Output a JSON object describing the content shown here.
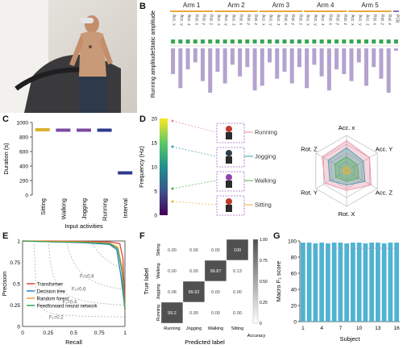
{
  "panels": {
    "a": "A",
    "b": "B",
    "c": "C",
    "d": "D",
    "e": "E",
    "f": "F",
    "g": "G"
  },
  "chart_data": [
    {
      "panel": "B",
      "type": "bar",
      "groups": [
        "Arm 1",
        "Arm 2",
        "Arm 3",
        "Arm 4",
        "Arm 5"
      ],
      "group_colors": [
        "#e8a93a",
        "#e8a93a",
        "#e8a93a",
        "#e8a93a",
        "#e8a93a"
      ],
      "categories": [
        "Acc. x",
        "Acc. y",
        "Acc. z",
        "Rot. x",
        "Rot. y",
        "Rot. z",
        "Acc. x",
        "Acc. y",
        "Acc. z",
        "Rot. x",
        "Rot. y",
        "Rot. z",
        "Acc. x",
        "Acc. y",
        "Acc. z",
        "Rot. x",
        "Rot. y",
        "Rot. z",
        "Acc. x",
        "Acc. y",
        "Acc. z",
        "Rot. x",
        "Rot. y",
        "Rot. z",
        "Acc. x",
        "Acc. y",
        "Acc. z",
        "Rot. x",
        "Rot. y",
        "Rot. z",
        "PCB"
      ],
      "series": [
        {
          "name": "",
          "values": [
            0.05,
            0.04,
            0.05,
            0.05,
            0.04,
            0.05,
            0.05,
            0.04,
            0.05,
            0.05,
            0.04,
            0.05,
            0.05,
            0.04,
            0.05,
            0.05,
            0.04,
            0.05,
            0.05,
            0.04,
            0.05,
            0.05,
            0.04,
            0.05,
            0.05,
            0.04,
            0.05,
            0.05,
            0.04,
            0.05,
            0.05
          ]
        },
        {
          "name": "",
          "values": [
            0.55,
            0.85,
            0.45,
            0.3,
            0.7,
            0.95,
            0.5,
            0.75,
            0.35,
            0.6,
            0.4,
            0.9,
            0.8,
            0.3,
            0.65,
            0.5,
            0.75,
            0.4,
            0.85,
            0.35,
            0.6,
            0.9,
            0.45,
            0.55,
            0.7,
            0.3,
            0.8,
            0.4,
            0.65,
            0.95,
            0.05
          ]
        }
      ],
      "ylabel_top": "Static amplitude",
      "ylabel_bottom": "Running amplitude",
      "colors": {
        "static": "#3aa655",
        "running": "#b3a3cf",
        "arm_line": "#e8a93a",
        "pcb_line": "#8a6fb5"
      }
    },
    {
      "panel": "C",
      "type": "scatter",
      "categories": [
        "Sitting",
        "Walking",
        "Jogging",
        "Running",
        "Interval"
      ],
      "values": [
        900,
        895,
        895,
        895,
        305
      ],
      "ylabel": "Duration (s)",
      "xlabel": "Input activities",
      "ylim": [
        0,
        1000
      ],
      "yticks": [
        0,
        200,
        400,
        600,
        800,
        1000
      ],
      "colors": [
        "#d9b22f",
        "#7b4aa0",
        "#7b4aa0",
        "#2c3a8c",
        "#2c3a8c"
      ]
    },
    {
      "panel": "D",
      "type": "heatmap",
      "colorbar_label": "Frequency (Hz)",
      "colorbar_ticks": [
        0,
        5,
        10,
        15,
        20
      ],
      "activities": [
        "Running",
        "Jogging",
        "Walking",
        "Sitting"
      ],
      "activity_colors": [
        "#e78aa0",
        "#3a9fa5",
        "#4caf50",
        "#f0b23c"
      ],
      "radar_axes": [
        "Acc. x",
        "Acc. Y",
        "Acc. Z",
        "Rot. X",
        "Rot. Y",
        "Rot. Z"
      ],
      "radar_series": [
        {
          "name": "Running",
          "values": [
            0.85,
            0.75,
            0.8,
            0.55,
            0.7,
            0.8
          ]
        },
        {
          "name": "Jogging",
          "values": [
            0.65,
            0.55,
            0.6,
            0.4,
            0.55,
            0.6
          ]
        },
        {
          "name": "Walking",
          "values": [
            0.4,
            0.35,
            0.4,
            0.3,
            0.35,
            0.38
          ]
        },
        {
          "name": "Sitting",
          "values": [
            0.12,
            0.1,
            0.12,
            0.1,
            0.1,
            0.12
          ]
        }
      ]
    },
    {
      "panel": "E",
      "type": "line",
      "xlabel": "Recall",
      "ylabel": "Precision",
      "xlim": [
        0,
        1
      ],
      "ylim": [
        0,
        1
      ],
      "xticks": [
        0,
        0.25,
        0.5,
        0.75,
        1
      ],
      "yticks": [
        0,
        0.25,
        0.5,
        0.75,
        1
      ],
      "xtick_labels": [
        "0",
        "0.25",
        "0.5",
        "0.75",
        "1"
      ],
      "ytick_labels": [
        "0",
        "0.25",
        "0.5",
        "0.75",
        "1"
      ],
      "series": [
        {
          "name": "Transformer",
          "color": "#e0443a",
          "points": [
            [
              0,
              1
            ],
            [
              0.3,
              1
            ],
            [
              0.6,
              0.995
            ],
            [
              0.85,
              0.99
            ],
            [
              0.95,
              0.97
            ],
            [
              0.98,
              0.8
            ],
            [
              1,
              0.2
            ]
          ]
        },
        {
          "name": "Decision tree",
          "color": "#2f7fc1",
          "points": [
            [
              0,
              1
            ],
            [
              0.3,
              0.99
            ],
            [
              0.6,
              0.98
            ],
            [
              0.85,
              0.96
            ],
            [
              0.92,
              0.9
            ],
            [
              0.96,
              0.6
            ],
            [
              1,
              0.2
            ]
          ]
        },
        {
          "name": "Random forest",
          "color": "#f39c2f",
          "points": [
            [
              0,
              1
            ],
            [
              0.3,
              0.995
            ],
            [
              0.6,
              0.99
            ],
            [
              0.85,
              0.975
            ],
            [
              0.93,
              0.93
            ],
            [
              0.97,
              0.7
            ],
            [
              1,
              0.2
            ]
          ]
        },
        {
          "name": "Feedforward neural network",
          "color": "#3aa655",
          "points": [
            [
              0,
              1
            ],
            [
              0.3,
              0.99
            ],
            [
              0.6,
              0.985
            ],
            [
              0.85,
              0.97
            ],
            [
              0.93,
              0.91
            ],
            [
              0.97,
              0.65
            ],
            [
              1,
              0.2
            ]
          ]
        }
      ],
      "iso_f1": [
        0.8,
        0.6,
        0.4,
        0.2
      ],
      "iso_labels": [
        "F₁=0.8",
        "F₁=0.6",
        "F₁=0.4",
        "F₁=0.2"
      ]
    },
    {
      "panel": "F",
      "type": "table",
      "xlabel": "Predicted label",
      "ylabel": "True label",
      "rows": [
        "Sitting",
        "Walking",
        "Jogging",
        "Running"
      ],
      "cols": [
        "Running",
        "Jogging",
        "Walking",
        "Sitting"
      ],
      "matrix": [
        [
          "0.00",
          "0.00",
          "0.00",
          "100"
        ],
        [
          "0.00",
          "0.00",
          "99.87",
          "0.13"
        ],
        [
          "0.08",
          "99.92",
          "0.00",
          "0.00"
        ],
        [
          "99.2",
          "0.00",
          "0.00",
          "0.00"
        ]
      ],
      "colorbar_ticks": [
        "0",
        "0.25",
        "0.50",
        "0.75",
        "1.00"
      ],
      "colorbar_label": "Accuracy"
    },
    {
      "panel": "G",
      "type": "bar",
      "xlabel": "Subject",
      "ylabel": "Macro F₁ score",
      "ylim": [
        0,
        100
      ],
      "yticks": [
        0,
        20,
        40,
        60,
        80,
        100
      ],
      "xtick_labels": [
        "1",
        "4",
        "7",
        "10",
        "13",
        "16"
      ],
      "categories": [
        "1",
        "2",
        "3",
        "4",
        "5",
        "6",
        "7",
        "8",
        "9",
        "10",
        "11",
        "12",
        "13",
        "14",
        "15",
        "16"
      ],
      "values": [
        98,
        98,
        97,
        98,
        97,
        98,
        98,
        97,
        98,
        98,
        97,
        98,
        98,
        97,
        98,
        98
      ],
      "ref_line": 91,
      "color": "#4fb3d1"
    }
  ],
  "photo": {
    "description_icon": "treadmill-person-icon"
  }
}
